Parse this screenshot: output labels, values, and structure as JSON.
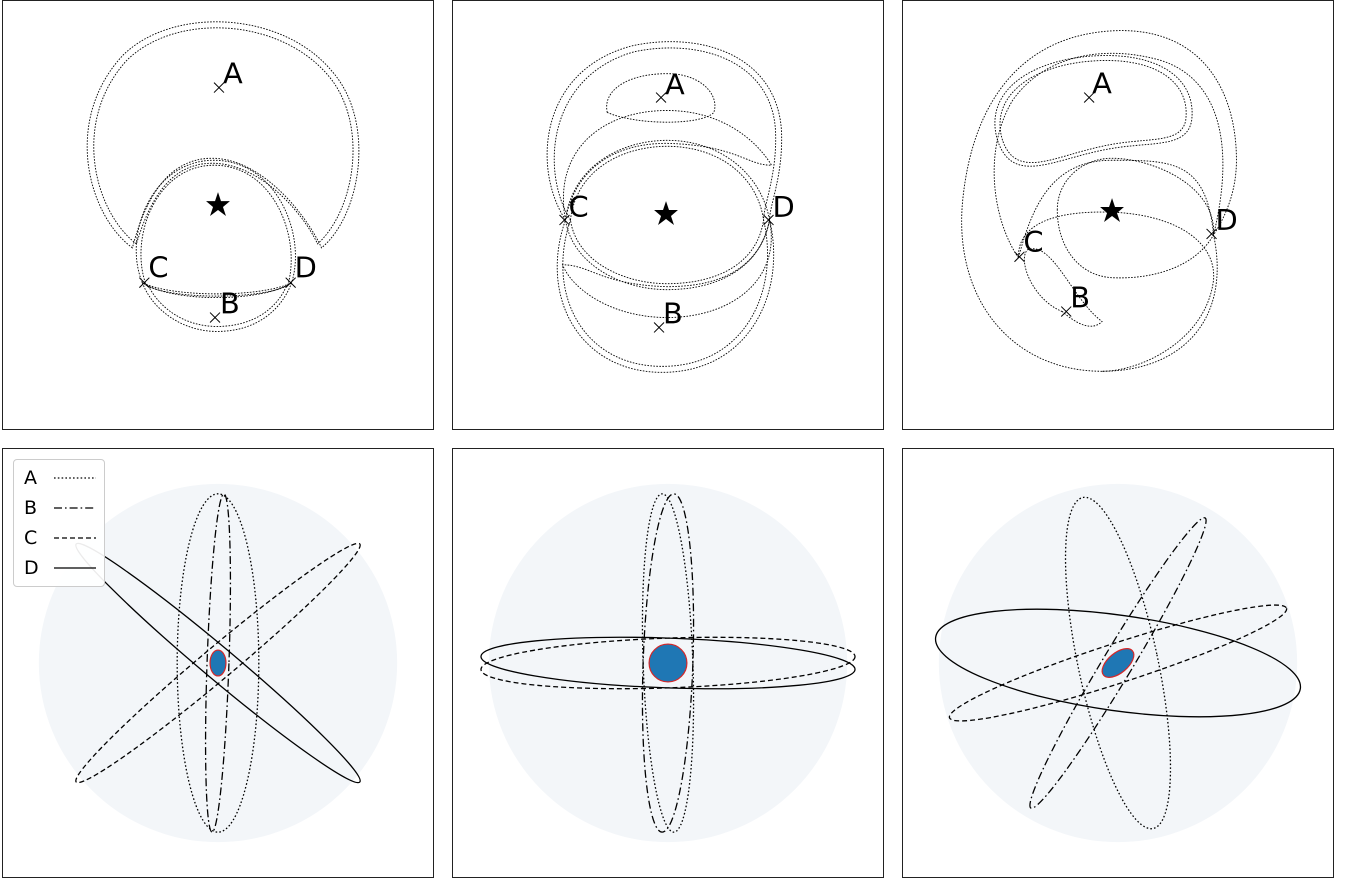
{
  "top_panels": [
    {
      "name": "panel-top-1",
      "labels": {
        "A": "A",
        "B": "B",
        "C": "C",
        "D": "D"
      }
    },
    {
      "name": "panel-top-2",
      "labels": {
        "A": "A",
        "B": "B",
        "C": "C",
        "D": "D"
      }
    },
    {
      "name": "panel-top-3",
      "labels": {
        "A": "A",
        "B": "B",
        "C": "C",
        "D": "D"
      }
    }
  ],
  "legend": {
    "entries": [
      {
        "label": "A",
        "style": "dotted"
      },
      {
        "label": "B",
        "style": "dash-dot"
      },
      {
        "label": "C",
        "style": "dashed"
      },
      {
        "label": "D",
        "style": "solid"
      }
    ]
  },
  "colors": {
    "background_disk": "#f3f6f9",
    "central_fill": "#1f77b4",
    "central_stroke": "#d62728",
    "line": "#000000"
  }
}
